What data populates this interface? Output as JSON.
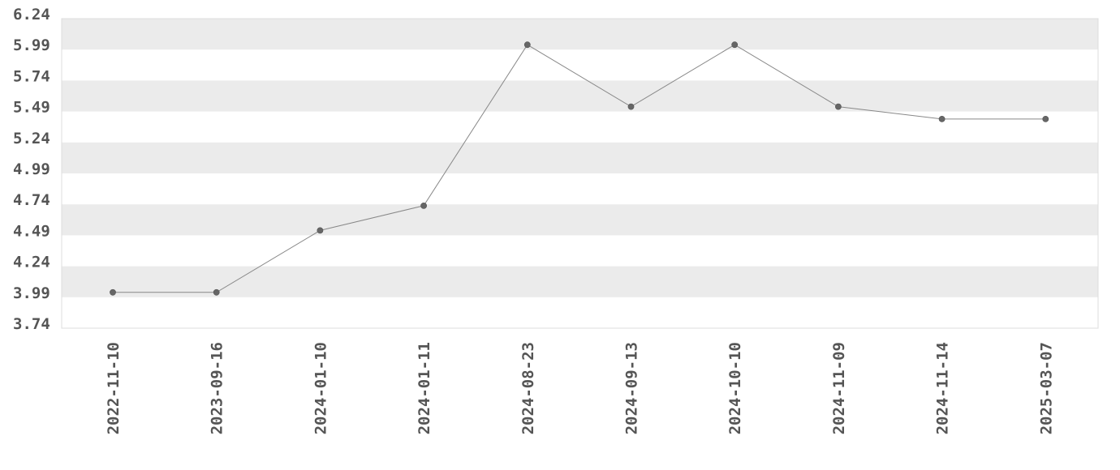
{
  "chart_data": {
    "type": "line",
    "title": "",
    "xlabel": "",
    "ylabel": "",
    "x": [
      "2022-11-10",
      "2023-09-16",
      "2024-01-10",
      "2024-01-11",
      "2024-08-23",
      "2024-09-13",
      "2024-10-10",
      "2024-11-09",
      "2024-11-14",
      "2025-03-07"
    ],
    "series": [
      {
        "values": [
          3.99,
          3.99,
          4.49,
          4.69,
          5.99,
          5.49,
          5.99,
          5.49,
          5.39,
          5.39
        ]
      }
    ],
    "y_ticks": [
      "3.74",
      "3.99",
      "4.24",
      "4.49",
      "4.74",
      "4.99",
      "5.24",
      "5.49",
      "5.74",
      "5.99",
      "6.24"
    ],
    "ylim": [
      3.74,
      6.24
    ],
    "grid": "alternating horizontal bands",
    "legend": "none",
    "colors": {
      "line": "#888888",
      "marker": "#666666",
      "band": "#ebebeb",
      "tick_text": "#555555",
      "plot_border": "#dddddd"
    }
  }
}
